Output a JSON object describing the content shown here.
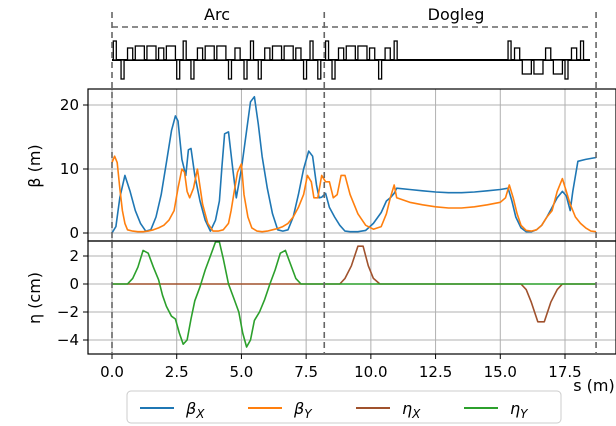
{
  "sections": [
    {
      "label": "Arc",
      "s_start": 0,
      "s_end": 8.2
    },
    {
      "label": "Dogleg",
      "s_start": 8.2,
      "s_end": 18.7
    }
  ],
  "chart_data": [
    {
      "type": "line",
      "panel": "beta",
      "ylabel": "β (m)",
      "ylim": [
        -1.3,
        23
      ],
      "yticks": [
        "0",
        "10",
        "20"
      ],
      "ytick_values": [
        0,
        10,
        20
      ],
      "xlim": [
        -0.2,
        19.1
      ],
      "grid": true,
      "series": [
        {
          "name": "βX",
          "color": "#1f77b4",
          "x": [
            0,
            0.15,
            0.3,
            0.5,
            0.7,
            0.9,
            1.1,
            1.3,
            1.5,
            1.7,
            1.9,
            2.1,
            2.3,
            2.45,
            2.55,
            2.7,
            2.85,
            2.95,
            3.05,
            3.2,
            3.4,
            3.6,
            3.8,
            4.0,
            4.15,
            4.25,
            4.35,
            4.5,
            4.65,
            4.8,
            5.0,
            5.2,
            5.35,
            5.5,
            5.65,
            5.8,
            6.0,
            6.2,
            6.4,
            6.6,
            6.8,
            7.0,
            7.2,
            7.4,
            7.6,
            7.75,
            7.9,
            8.0,
            8.1,
            8.25,
            8.4,
            8.6,
            8.8,
            9.0,
            9.2,
            9.5,
            9.8,
            10.1,
            10.4,
            10.6,
            10.75,
            10.9,
            11.0,
            11.5,
            12.0,
            12.5,
            13.0,
            13.5,
            14.0,
            14.5,
            15.0,
            15.3,
            15.45,
            15.6,
            15.8,
            16.0,
            16.2,
            16.4,
            16.6,
            16.8,
            17.0,
            17.2,
            17.4,
            17.55,
            17.7,
            17.8,
            18.0,
            18.3,
            18.7
          ],
          "values": [
            0,
            1,
            5.5,
            9,
            6.5,
            3.5,
            1.5,
            0.3,
            0.5,
            2.5,
            6,
            11,
            16,
            18.3,
            17.5,
            11.5,
            9,
            13,
            13.2,
            9,
            5,
            2,
            0.3,
            2,
            5,
            10.5,
            15.5,
            15.8,
            10.5,
            5.5,
            10,
            16,
            20.5,
            21.3,
            17,
            12,
            7,
            3,
            0.5,
            0.3,
            0.5,
            2.5,
            6,
            10,
            12.8,
            12,
            7.5,
            5.5,
            5.6,
            6.2,
            4,
            2.5,
            1.2,
            0.3,
            0.2,
            0.2,
            0.4,
            1.5,
            3.2,
            5,
            5.5,
            6.2,
            7,
            6.8,
            6.6,
            6.4,
            6.3,
            6.3,
            6.4,
            6.6,
            6.8,
            7,
            5,
            2.5,
            0.8,
            0.2,
            0.2,
            0.5,
            1.2,
            2.5,
            4,
            5.5,
            6.5,
            5.8,
            3.5,
            6.5,
            11.2,
            11.5,
            11.8
          ]
        },
        {
          "name": "βY",
          "color": "#ff7f0e",
          "x": [
            0,
            0.1,
            0.2,
            0.3,
            0.4,
            0.5,
            0.6,
            0.8,
            1.0,
            1.2,
            1.4,
            1.6,
            1.8,
            2.0,
            2.2,
            2.4,
            2.55,
            2.7,
            2.8,
            2.9,
            3.0,
            3.15,
            3.3,
            3.5,
            3.7,
            3.9,
            4.1,
            4.3,
            4.5,
            4.6,
            4.7,
            4.85,
            5.0,
            5.1,
            5.25,
            5.4,
            5.6,
            5.8,
            6.0,
            6.2,
            6.4,
            6.6,
            6.8,
            7.0,
            7.2,
            7.4,
            7.55,
            7.7,
            7.8,
            7.95,
            8.1,
            8.25,
            8.4,
            8.55,
            8.7,
            8.85,
            9.0,
            9.2,
            9.5,
            9.8,
            10.1,
            10.4,
            10.6,
            10.75,
            10.9,
            11.0,
            11.5,
            12.0,
            12.5,
            13.0,
            13.5,
            14.0,
            14.5,
            15.0,
            15.2,
            15.35,
            15.5,
            15.65,
            15.8,
            16.0,
            16.2,
            16.4,
            16.6,
            16.8,
            17.0,
            17.2,
            17.4,
            17.55,
            17.7,
            17.9,
            18.1,
            18.3,
            18.5,
            18.7
          ],
          "values": [
            11,
            12,
            11,
            7,
            3.5,
            1.5,
            0.5,
            0.3,
            0.2,
            0.2,
            0.3,
            0.5,
            0.8,
            1.2,
            2,
            3.5,
            7,
            10,
            9.5,
            6.5,
            5.5,
            7,
            10,
            4.5,
            1.5,
            0.3,
            0.3,
            0.5,
            1.5,
            3.5,
            6,
            9.5,
            10.8,
            6,
            2.5,
            0.8,
            0.3,
            0.2,
            0.3,
            0.5,
            0.7,
            1,
            1.5,
            2.5,
            4,
            6,
            9,
            8,
            5.5,
            5.5,
            9,
            8,
            8,
            5.5,
            6,
            9,
            9,
            6,
            3,
            1.2,
            0.6,
            1,
            3,
            5.5,
            7.5,
            5.5,
            4.8,
            4.4,
            4.1,
            3.9,
            3.9,
            4.1,
            4.4,
            4.8,
            5.5,
            7.5,
            5.5,
            3,
            1.2,
            0.4,
            0.3,
            0.5,
            1.2,
            2.5,
            3.5,
            6.5,
            8.5,
            6.5,
            4.5,
            2.5,
            1.5,
            0.8,
            0.3,
            0.2
          ]
        }
      ]
    },
    {
      "type": "line",
      "panel": "eta",
      "ylabel": "η (cm)",
      "xlabel": "s (m)",
      "ylim": [
        -5.2,
        3.4
      ],
      "yticks": [
        "2",
        "0",
        "−2",
        "−4"
      ],
      "ytick_values": [
        2,
        0,
        -2,
        -4
      ],
      "xlim": [
        -0.2,
        19.1
      ],
      "xticks": [
        "0.0",
        "2.5",
        "5.0",
        "7.5",
        "10.0",
        "12.5",
        "15.0",
        "17.5"
      ],
      "xtick_values": [
        0,
        2.5,
        5,
        7.5,
        10,
        12.5,
        15,
        17.5
      ],
      "grid": true,
      "series": [
        {
          "name": "ηX",
          "color": "#a0522d",
          "x": [
            0,
            8.8,
            9.0,
            9.25,
            9.5,
            9.7,
            9.9,
            10.1,
            10.35,
            10.6,
            15.8,
            16.0,
            16.2,
            16.45,
            16.7,
            16.95,
            17.2,
            17.4,
            18.7
          ],
          "values": [
            0,
            0,
            0.4,
            1.3,
            2.7,
            2.7,
            1.3,
            0.4,
            0,
            0,
            0,
            -0.4,
            -1.3,
            -2.7,
            -2.7,
            -1.3,
            -0.4,
            0,
            0
          ]
        },
        {
          "name": "ηY",
          "color": "#2ca02c",
          "x": [
            0,
            0.6,
            0.8,
            1.0,
            1.2,
            1.4,
            1.6,
            1.8,
            1.95,
            2.1,
            2.3,
            2.45,
            2.6,
            2.75,
            2.9,
            3.05,
            3.2,
            3.4,
            3.6,
            3.8,
            4.0,
            4.15,
            4.3,
            4.5,
            4.7,
            4.9,
            5.05,
            5.2,
            5.35,
            5.5,
            5.7,
            5.9,
            6.1,
            6.3,
            6.5,
            6.7,
            6.9,
            7.1,
            7.3,
            18.7
          ],
          "values": [
            0,
            0,
            0.4,
            1.2,
            2.4,
            2.2,
            1.2,
            0.3,
            -0.8,
            -1.6,
            -2.3,
            -2.5,
            -3.5,
            -4.3,
            -4,
            -2.5,
            -1.2,
            -0.2,
            1,
            2,
            3,
            3,
            1.8,
            0,
            -1,
            -2,
            -3.5,
            -4.5,
            -4,
            -2.6,
            -2,
            -1.1,
            0,
            1,
            2.2,
            2.4,
            1.4,
            0.4,
            0,
            0
          ]
        }
      ]
    }
  ],
  "legend": {
    "placement": "bottom-center",
    "entries": [
      {
        "label": "βX",
        "base": "β",
        "sub": "X",
        "color": "#1f77b4"
      },
      {
        "label": "βY",
        "base": "β",
        "sub": "Y",
        "color": "#ff7f0e"
      },
      {
        "label": "ηX",
        "base": "η",
        "sub": "X",
        "color": "#a0522d"
      },
      {
        "label": "ηY",
        "base": "η",
        "sub": "Y",
        "color": "#2ca02c"
      }
    ]
  },
  "lattice": {
    "description_colors": {
      "line": "#000000"
    },
    "elements": [
      {
        "s": 0.05,
        "dir": "up",
        "len": 0.1
      },
      {
        "s": 0.35,
        "dir": "down",
        "len": 0.1
      },
      {
        "s": 0.6,
        "dir": "up",
        "len": 0.2
      },
      {
        "s": 0.9,
        "dir": "up",
        "len": 0.35
      },
      {
        "s": 1.35,
        "dir": "up",
        "len": 0.35
      },
      {
        "s": 1.8,
        "dir": "up",
        "len": 0.2
      },
      {
        "s": 2.1,
        "dir": "up",
        "len": 0.35
      },
      {
        "s": 2.5,
        "dir": "down",
        "len": 0.1
      },
      {
        "s": 2.75,
        "dir": "up",
        "len": 0.1
      },
      {
        "s": 3.05,
        "dir": "down",
        "len": 0.1
      },
      {
        "s": 3.3,
        "dir": "up",
        "len": 0.2
      },
      {
        "s": 3.6,
        "dir": "up",
        "len": 0.35
      },
      {
        "s": 4.05,
        "dir": "up",
        "len": 0.35
      },
      {
        "s": 4.5,
        "dir": "down",
        "len": 0.1
      },
      {
        "s": 4.75,
        "dir": "up",
        "len": 0.2
      },
      {
        "s": 5.1,
        "dir": "down",
        "len": 0.1
      },
      {
        "s": 5.35,
        "dir": "up",
        "len": 0.1
      },
      {
        "s": 5.65,
        "dir": "down",
        "len": 0.1
      },
      {
        "s": 5.9,
        "dir": "up",
        "len": 0.2
      },
      {
        "s": 6.2,
        "dir": "up",
        "len": 0.35
      },
      {
        "s": 6.65,
        "dir": "up",
        "len": 0.35
      },
      {
        "s": 7.1,
        "dir": "up",
        "len": 0.2
      },
      {
        "s": 7.4,
        "dir": "down",
        "len": 0.1
      },
      {
        "s": 7.65,
        "dir": "up",
        "len": 0.1
      },
      {
        "s": 7.95,
        "dir": "down",
        "len": 0.1
      },
      {
        "s": 8.25,
        "dir": "up",
        "len": 0.1
      },
      {
        "s": 8.5,
        "dir": "down",
        "len": 0.1
      },
      {
        "s": 8.75,
        "dir": "up",
        "len": 0.2
      },
      {
        "s": 9.05,
        "dir": "up",
        "len": 0.35
      },
      {
        "s": 9.5,
        "dir": "up",
        "len": 0.35
      },
      {
        "s": 9.95,
        "dir": "up",
        "len": 0.2
      },
      {
        "s": 10.3,
        "dir": "down",
        "len": 0.1
      },
      {
        "s": 10.55,
        "dir": "up",
        "len": 0.2
      },
      {
        "s": 10.9,
        "dir": "up",
        "len": 0.1
      },
      {
        "s": 15.3,
        "dir": "up",
        "len": 0.1
      },
      {
        "s": 15.55,
        "dir": "up",
        "len": 0.2
      },
      {
        "s": 15.85,
        "dir": "down",
        "len": 0.35
      },
      {
        "s": 16.3,
        "dir": "down",
        "len": 0.35
      },
      {
        "s": 16.75,
        "dir": "up",
        "len": 0.2
      },
      {
        "s": 17.05,
        "dir": "down",
        "len": 0.35
      },
      {
        "s": 17.5,
        "dir": "down",
        "len": 0.1
      },
      {
        "s": 17.75,
        "dir": "up",
        "len": 0.2
      },
      {
        "s": 18.1,
        "dir": "up",
        "len": 0.1
      }
    ]
  }
}
